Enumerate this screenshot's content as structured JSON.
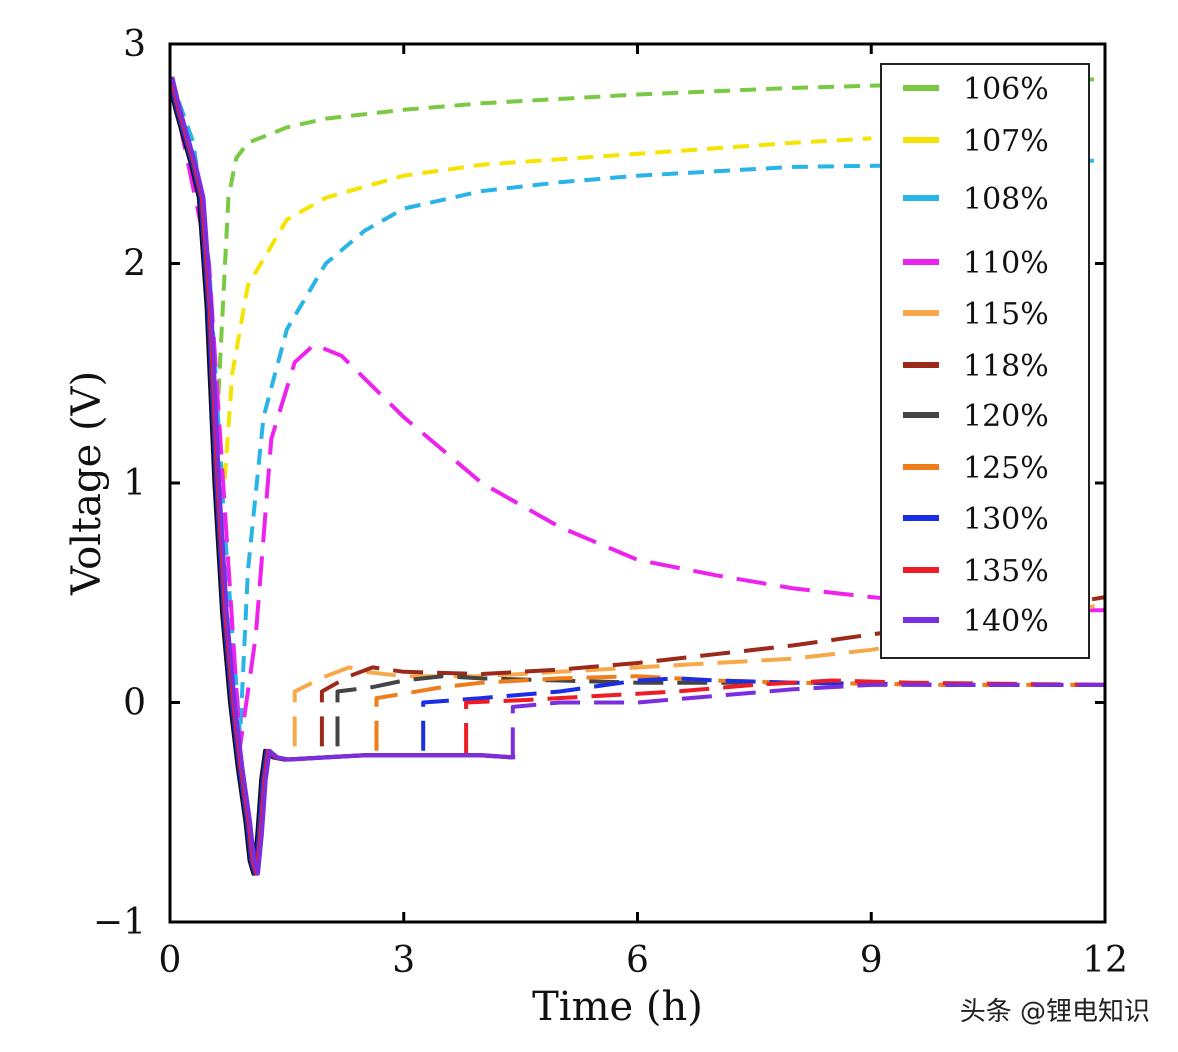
{
  "chart_data": {
    "type": "line",
    "xlabel": "Time (h)",
    "ylabel": "Voltage (V)",
    "xlim": [
      0,
      12
    ],
    "ylim": [
      -1,
      3
    ],
    "x_ticks": [
      "0",
      "3",
      "6",
      "9",
      "12"
    ],
    "y_ticks": [
      "−1",
      "0",
      "1",
      "2",
      "3"
    ],
    "grid": false,
    "legend_position": "top-right",
    "series": [
      {
        "name": "106%",
        "color": "#7ac943",
        "dash": "dashed",
        "points": [
          [
            0,
            2.85
          ],
          [
            0.3,
            2.55
          ],
          [
            0.5,
            2.0
          ],
          [
            0.6,
            1.25
          ],
          [
            0.65,
            1.6
          ],
          [
            0.75,
            2.3
          ],
          [
            0.85,
            2.48
          ],
          [
            1.0,
            2.55
          ],
          [
            1.5,
            2.62
          ],
          [
            2,
            2.66
          ],
          [
            3,
            2.7
          ],
          [
            4,
            2.73
          ],
          [
            6,
            2.77
          ],
          [
            8,
            2.8
          ],
          [
            10,
            2.82
          ],
          [
            12,
            2.84
          ]
        ]
      },
      {
        "name": "107%",
        "color": "#f5e400",
        "dash": "dashed",
        "points": [
          [
            0,
            2.85
          ],
          [
            0.3,
            2.55
          ],
          [
            0.5,
            2.0
          ],
          [
            0.6,
            1.2
          ],
          [
            0.7,
            1.0
          ],
          [
            0.8,
            1.5
          ],
          [
            1.0,
            1.9
          ],
          [
            1.5,
            2.2
          ],
          [
            2,
            2.3
          ],
          [
            3,
            2.4
          ],
          [
            4,
            2.45
          ],
          [
            6,
            2.5
          ],
          [
            8,
            2.55
          ],
          [
            9,
            2.57
          ]
        ]
      },
      {
        "name": "108%",
        "color": "#29b4e8",
        "dash": "dashed",
        "points": [
          [
            0,
            2.85
          ],
          [
            0.3,
            2.55
          ],
          [
            0.5,
            2.0
          ],
          [
            0.7,
            0.8
          ],
          [
            0.9,
            -0.15
          ],
          [
            1.0,
            0.6
          ],
          [
            1.2,
            1.3
          ],
          [
            1.5,
            1.7
          ],
          [
            2,
            2.0
          ],
          [
            2.5,
            2.15
          ],
          [
            3,
            2.25
          ],
          [
            4,
            2.33
          ],
          [
            5,
            2.37
          ],
          [
            6,
            2.4
          ],
          [
            8,
            2.44
          ],
          [
            10,
            2.45
          ],
          [
            12,
            2.47
          ]
        ]
      },
      {
        "name": "110%",
        "color": "#ee22ee",
        "dash": "longdash",
        "points": [
          [
            0,
            2.85
          ],
          [
            0.5,
            2.0
          ],
          [
            0.9,
            -0.2
          ],
          [
            1.1,
            0.3
          ],
          [
            1.3,
            1.2
          ],
          [
            1.6,
            1.55
          ],
          [
            1.85,
            1.63
          ],
          [
            2.2,
            1.58
          ],
          [
            3,
            1.3
          ],
          [
            4,
            1.0
          ],
          [
            5,
            0.8
          ],
          [
            6,
            0.65
          ],
          [
            7,
            0.58
          ],
          [
            8,
            0.52
          ],
          [
            9,
            0.48
          ],
          [
            10,
            0.45
          ],
          [
            11,
            0.42
          ],
          [
            12,
            0.42
          ]
        ]
      },
      {
        "name": "115%",
        "color": "#f7a94a",
        "dash": "longdash",
        "points": [
          [
            1.6,
            -0.2
          ],
          [
            1.6,
            0.05
          ],
          [
            2,
            0.12
          ],
          [
            2.3,
            0.16
          ],
          [
            2.5,
            0.14
          ],
          [
            3,
            0.12
          ],
          [
            4,
            0.12
          ],
          [
            5,
            0.14
          ],
          [
            6,
            0.16
          ],
          [
            7,
            0.18
          ],
          [
            8,
            0.2
          ],
          [
            9,
            0.24
          ],
          [
            10,
            0.3
          ],
          [
            11,
            0.37
          ],
          [
            12,
            0.45
          ]
        ]
      },
      {
        "name": "118%",
        "color": "#9b2a1b",
        "dash": "longdash",
        "points": [
          [
            1.95,
            -0.2
          ],
          [
            1.95,
            0.05
          ],
          [
            2.3,
            0.12
          ],
          [
            2.6,
            0.16
          ],
          [
            3,
            0.14
          ],
          [
            4,
            0.13
          ],
          [
            5,
            0.15
          ],
          [
            6,
            0.18
          ],
          [
            7,
            0.22
          ],
          [
            8,
            0.26
          ],
          [
            9,
            0.31
          ],
          [
            10,
            0.36
          ],
          [
            11,
            0.42
          ],
          [
            12,
            0.48
          ]
        ]
      },
      {
        "name": "120%",
        "color": "#444444",
        "dash": "longdash",
        "points": [
          [
            2.15,
            -0.2
          ],
          [
            2.15,
            0.05
          ],
          [
            2.6,
            0.07
          ],
          [
            3,
            0.1
          ],
          [
            3.5,
            0.12
          ],
          [
            4,
            0.11
          ],
          [
            5,
            0.1
          ],
          [
            6,
            0.09
          ],
          [
            8,
            0.09
          ],
          [
            10,
            0.08
          ],
          [
            12,
            0.08
          ]
        ]
      },
      {
        "name": "125%",
        "color": "#ee7d1a",
        "dash": "longdash",
        "points": [
          [
            2.65,
            -0.22
          ],
          [
            2.65,
            0.02
          ],
          [
            3,
            0.04
          ],
          [
            3.5,
            0.07
          ],
          [
            4,
            0.09
          ],
          [
            5,
            0.11
          ],
          [
            6,
            0.12
          ],
          [
            7,
            0.1
          ],
          [
            8,
            0.09
          ],
          [
            10,
            0.08
          ],
          [
            12,
            0.08
          ]
        ]
      },
      {
        "name": "130%",
        "color": "#1a2ee6",
        "dash": "longdash",
        "points": [
          [
            3.25,
            -0.22
          ],
          [
            3.25,
            0.0
          ],
          [
            4,
            0.02
          ],
          [
            5,
            0.05
          ],
          [
            6,
            0.1
          ],
          [
            6.5,
            0.11
          ],
          [
            7,
            0.1
          ],
          [
            8,
            0.09
          ],
          [
            10,
            0.08
          ],
          [
            12,
            0.08
          ]
        ]
      },
      {
        "name": "135%",
        "color": "#ee1c24",
        "dash": "longdash",
        "points": [
          [
            3.8,
            -0.23
          ],
          [
            3.8,
            0.0
          ],
          [
            4.5,
            0.01
          ],
          [
            5.5,
            0.03
          ],
          [
            6.5,
            0.05
          ],
          [
            7.5,
            0.08
          ],
          [
            8.5,
            0.1
          ],
          [
            9.5,
            0.09
          ],
          [
            12,
            0.08
          ]
        ]
      },
      {
        "name": "140%",
        "color": "#7a2ee0",
        "dash": "longdash",
        "points": [
          [
            4.4,
            -0.25
          ],
          [
            4.4,
            -0.02
          ],
          [
            5,
            0.0
          ],
          [
            6,
            0.0
          ],
          [
            7,
            0.03
          ],
          [
            8,
            0.06
          ],
          [
            9,
            0.08
          ],
          [
            10,
            0.08
          ],
          [
            12,
            0.08
          ]
        ]
      }
    ],
    "common_drop": [
      [
        0,
        2.85
      ],
      [
        0.1,
        2.7
      ],
      [
        0.3,
        2.45
      ],
      [
        0.4,
        2.3
      ],
      [
        0.5,
        1.8
      ],
      [
        0.6,
        1.0
      ],
      [
        0.7,
        0.4
      ],
      [
        0.8,
        0.0
      ],
      [
        0.9,
        -0.3
      ],
      [
        1.0,
        -0.55
      ],
      [
        1.05,
        -0.72
      ],
      [
        1.1,
        -0.78
      ],
      [
        1.15,
        -0.6
      ],
      [
        1.2,
        -0.35
      ],
      [
        1.25,
        -0.22
      ],
      [
        1.35,
        -0.25
      ],
      [
        1.5,
        -0.26
      ],
      [
        2,
        -0.25
      ],
      [
        2.5,
        -0.24
      ],
      [
        3,
        -0.24
      ],
      [
        3.5,
        -0.24
      ],
      [
        4,
        -0.24
      ],
      [
        4.4,
        -0.25
      ]
    ],
    "watermark": "头条 @锂电知识"
  }
}
